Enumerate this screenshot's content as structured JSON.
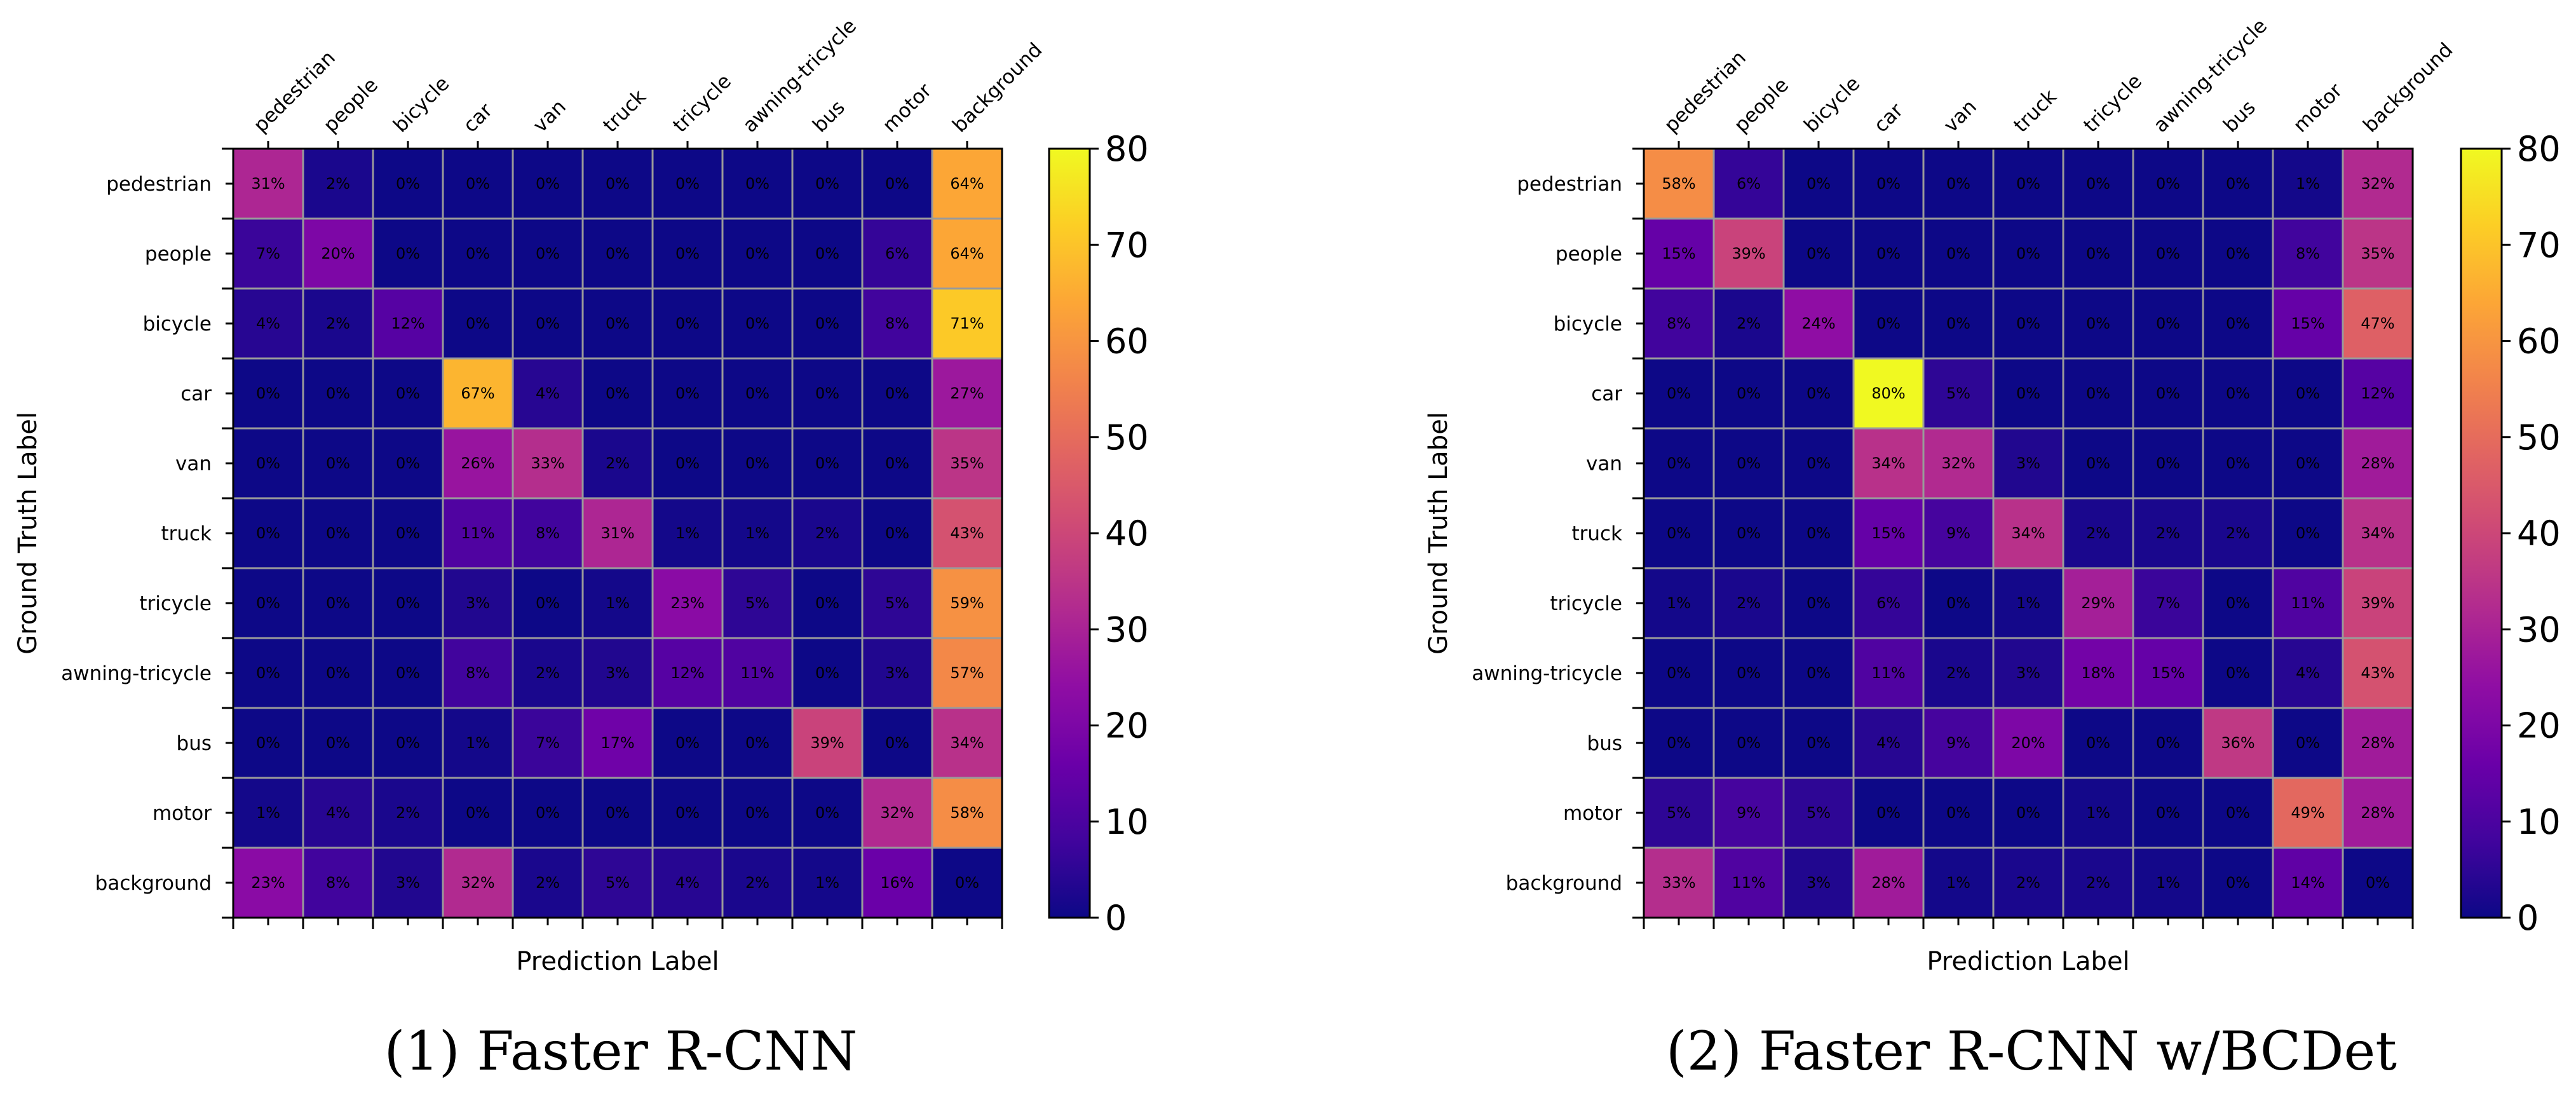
{
  "colormap": "plasma",
  "chart_data": [
    {
      "type": "heatmap",
      "caption": "(1)  Faster R-CNN",
      "xlabel": "Prediction Label",
      "ylabel": "Ground Truth Label",
      "x_categories": [
        "pedestrian",
        "people",
        "bicycle",
        "car",
        "van",
        "truck",
        "tricycle",
        "awning-tricycle",
        "bus",
        "motor",
        "background"
      ],
      "y_categories": [
        "pedestrian",
        "people",
        "bicycle",
        "car",
        "van",
        "truck",
        "tricycle",
        "awning-tricycle",
        "bus",
        "motor",
        "background"
      ],
      "values": [
        [
          31,
          2,
          0,
          0,
          0,
          0,
          0,
          0,
          0,
          0,
          64
        ],
        [
          7,
          20,
          0,
          0,
          0,
          0,
          0,
          0,
          0,
          6,
          64
        ],
        [
          4,
          2,
          12,
          0,
          0,
          0,
          0,
          0,
          0,
          8,
          71
        ],
        [
          0,
          0,
          0,
          67,
          4,
          0,
          0,
          0,
          0,
          0,
          27
        ],
        [
          0,
          0,
          0,
          26,
          33,
          2,
          0,
          0,
          0,
          0,
          35
        ],
        [
          0,
          0,
          0,
          11,
          8,
          31,
          1,
          1,
          2,
          0,
          43
        ],
        [
          0,
          0,
          0,
          3,
          0,
          1,
          23,
          5,
          0,
          5,
          59
        ],
        [
          0,
          0,
          0,
          8,
          2,
          3,
          12,
          11,
          0,
          3,
          57
        ],
        [
          0,
          0,
          0,
          1,
          7,
          17,
          0,
          0,
          39,
          0,
          34
        ],
        [
          1,
          4,
          2,
          0,
          0,
          0,
          0,
          0,
          0,
          32,
          58
        ],
        [
          23,
          8,
          3,
          32,
          2,
          5,
          4,
          2,
          1,
          16,
          0
        ]
      ],
      "value_suffix": "%",
      "colorbar": {
        "min": 0,
        "max": 80,
        "ticks": [
          0,
          10,
          20,
          30,
          40,
          50,
          60,
          70,
          80
        ]
      }
    },
    {
      "type": "heatmap",
      "caption": "(2)  Faster R-CNN w/BCDet",
      "xlabel": "Prediction Label",
      "ylabel": "Ground Truth Label",
      "x_categories": [
        "pedestrian",
        "people",
        "bicycle",
        "car",
        "van",
        "truck",
        "tricycle",
        "awning-tricycle",
        "bus",
        "motor",
        "background"
      ],
      "y_categories": [
        "pedestrian",
        "people",
        "bicycle",
        "car",
        "van",
        "truck",
        "tricycle",
        "awning-tricycle",
        "bus",
        "motor",
        "background"
      ],
      "values": [
        [
          58,
          6,
          0,
          0,
          0,
          0,
          0,
          0,
          0,
          1,
          32
        ],
        [
          15,
          39,
          0,
          0,
          0,
          0,
          0,
          0,
          0,
          8,
          35
        ],
        [
          8,
          2,
          24,
          0,
          0,
          0,
          0,
          0,
          0,
          15,
          47
        ],
        [
          0,
          0,
          0,
          80,
          5,
          0,
          0,
          0,
          0,
          0,
          12
        ],
        [
          0,
          0,
          0,
          34,
          32,
          3,
          0,
          0,
          0,
          0,
          28
        ],
        [
          0,
          0,
          0,
          15,
          9,
          34,
          2,
          2,
          2,
          0,
          34
        ],
        [
          1,
          2,
          0,
          6,
          0,
          1,
          29,
          7,
          0,
          11,
          39
        ],
        [
          0,
          0,
          0,
          11,
          2,
          3,
          18,
          15,
          0,
          4,
          43
        ],
        [
          0,
          0,
          0,
          4,
          9,
          20,
          0,
          0,
          36,
          0,
          28
        ],
        [
          5,
          9,
          5,
          0,
          0,
          0,
          1,
          0,
          0,
          49,
          28
        ],
        [
          33,
          11,
          3,
          28,
          1,
          2,
          2,
          1,
          0,
          14,
          0
        ]
      ],
      "value_suffix": "%",
      "colorbar": {
        "min": 0,
        "max": 80,
        "ticks": [
          0,
          10,
          20,
          30,
          40,
          50,
          60,
          70,
          80
        ]
      }
    }
  ]
}
